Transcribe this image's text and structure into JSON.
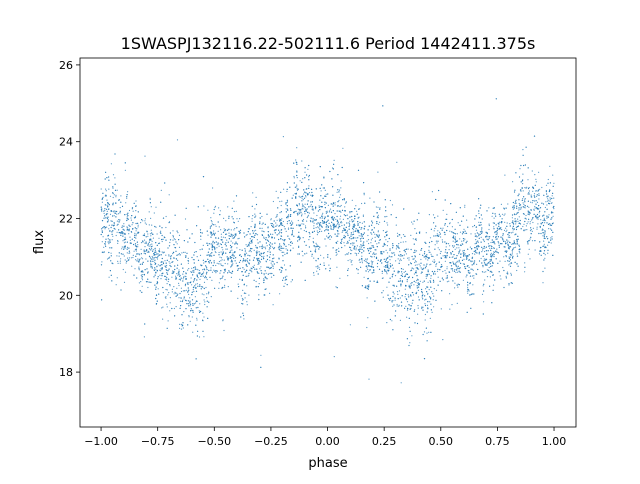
{
  "chart_data": {
    "type": "scatter",
    "title": "1SWASPJ132116.22-502111.6 Period 1442411.375s",
    "xlabel": "phase",
    "ylabel": "flux",
    "xlim": [
      -1.093,
      1.097
    ],
    "ylim": [
      16.57,
      26.18
    ],
    "xticks": [
      -1.0,
      -0.75,
      -0.5,
      -0.25,
      0.0,
      0.25,
      0.5,
      0.75,
      1.0
    ],
    "xtick_labels": [
      "−1.00",
      "−0.75",
      "−0.50",
      "−0.25",
      "0.00",
      "0.25",
      "0.50",
      "0.75",
      "1.00"
    ],
    "yticks": [
      18,
      20,
      22,
      24,
      26
    ],
    "ytick_labels": [
      "18",
      "20",
      "22",
      "24",
      "26"
    ],
    "grid": false,
    "marker_color": "#1f77b4",
    "series": [
      {
        "name": "flux",
        "description_of_density": "dense point cloud, binned mean flux per phase (phase 0..1, mirrored to -1..0)",
        "bin_phase": [
          0.0,
          0.05,
          0.1,
          0.15,
          0.2,
          0.25,
          0.3,
          0.35,
          0.4,
          0.45,
          0.5,
          0.55,
          0.6,
          0.65,
          0.7,
          0.75,
          0.8,
          0.85,
          0.9,
          0.95,
          1.0
        ],
        "bin_mean_flux": [
          22.0,
          21.7,
          21.5,
          21.4,
          21.4,
          21.2,
          20.9,
          20.3,
          20.2,
          20.6,
          20.9,
          21.1,
          21.2,
          21.3,
          21.4,
          21.5,
          21.6,
          21.8,
          22.0,
          22.0,
          22.0
        ],
        "bin_spread_flux": [
          0.7,
          0.7,
          0.6,
          0.6,
          0.6,
          0.7,
          0.8,
          0.8,
          0.8,
          0.8,
          0.7,
          0.6,
          0.6,
          0.6,
          0.6,
          0.6,
          0.6,
          0.7,
          0.7,
          0.7,
          0.7
        ],
        "n_points": 6000
      }
    ]
  }
}
